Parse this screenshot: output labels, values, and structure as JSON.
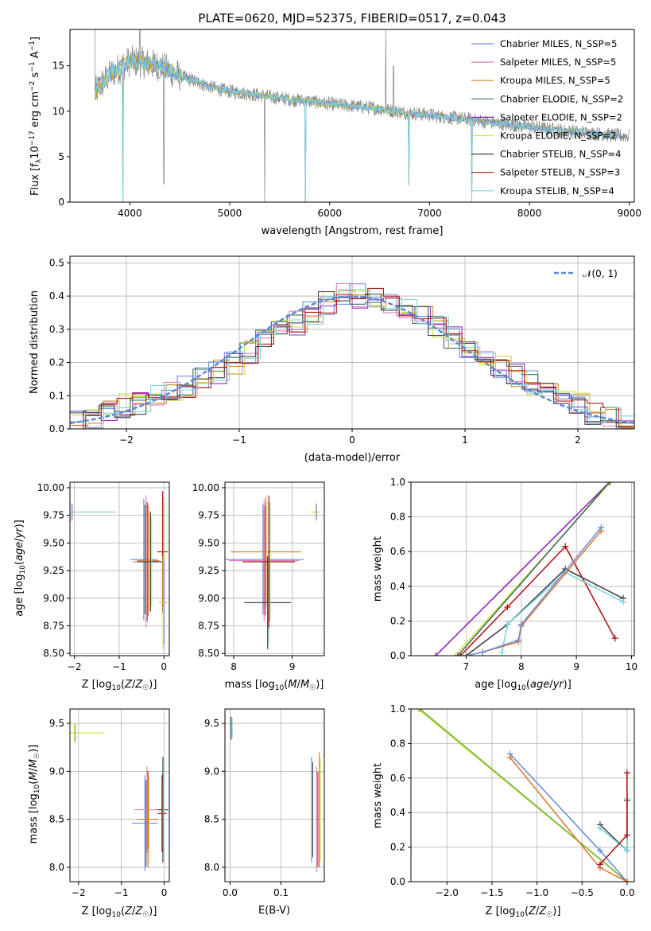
{
  "colors": {
    "Chabrier MILES": "#6f8fdc",
    "Salpeter MILES": "#e07fbe",
    "Kroupa MILES": "#c98a2e",
    "Chabrier ELODIE": "#3f6f5f",
    "Salpeter ELODIE": "#8b2fb5",
    "Kroupa ELODIE": "#d4e040",
    "Chabrier STELIB": "#444444",
    "Salpeter STELIB": "#b01818",
    "Kroupa STELIB": "#7fd6dc",
    "orange": "#e07a3a",
    "green": "#74b83a",
    "gray": "#808080",
    "gauss": "#5a8ad8"
  },
  "chart_data": [
    {
      "id": "spectrum",
      "type": "line",
      "title": "PLATE=0620, MJD=52375, FIBERID=0517, z=0.043",
      "xlabel": "wavelength [Angstrom, rest frame]",
      "ylabel": "Flux [f_λ 10^-17 erg cm^-2 s^-1 A^-1]",
      "xlim": [
        3400,
        9050
      ],
      "ylim": [
        0,
        19
      ],
      "xticks": [
        "4000",
        "5000",
        "6000",
        "7000",
        "8000",
        "9000"
      ],
      "yticks": [
        "0",
        "5",
        "10",
        "15"
      ],
      "legend_position": "upper right",
      "legend": [
        "Chabrier MILES, N_SSP=5",
        "Salpeter MILES, N_SSP=5",
        "Kroupa MILES, N_SSP=5",
        "Chabrier ELODIE, N_SSP=2",
        "Salpeter ELODIE, N_SSP=2",
        "Kroupa ELODIE, N_SSP=2",
        "Chabrier STELIB, N_SSP=4",
        "Salpeter STELIB, N_SSP=3",
        "Kroupa STELIB, N_SSP=4"
      ],
      "continuum": [
        [
          3650,
          12.0
        ],
        [
          3700,
          12.8
        ],
        [
          3800,
          14.0
        ],
        [
          3900,
          14.8
        ],
        [
          4000,
          15.5
        ],
        [
          4100,
          15.4
        ],
        [
          4200,
          15.2
        ],
        [
          4300,
          15.0
        ],
        [
          4400,
          14.4
        ],
        [
          4500,
          13.9
        ],
        [
          4600,
          13.5
        ],
        [
          4700,
          13.1
        ],
        [
          4800,
          12.7
        ],
        [
          4900,
          12.4
        ],
        [
          5000,
          12.2
        ],
        [
          5200,
          11.9
        ],
        [
          5400,
          11.6
        ],
        [
          5600,
          11.3
        ],
        [
          5800,
          11.1
        ],
        [
          6000,
          10.8
        ],
        [
          6200,
          10.6
        ],
        [
          6400,
          10.4
        ],
        [
          6600,
          10.1
        ],
        [
          6800,
          9.8
        ],
        [
          7000,
          9.6
        ],
        [
          7200,
          9.3
        ],
        [
          7400,
          9.1
        ],
        [
          7600,
          8.8
        ],
        [
          7800,
          8.5
        ],
        [
          8000,
          8.3
        ],
        [
          8200,
          8.0
        ],
        [
          8400,
          7.8
        ],
        [
          8600,
          7.6
        ],
        [
          8800,
          7.4
        ],
        [
          8900,
          7.3
        ]
      ],
      "model_gaps": [
        [
          3930,
          0.0
        ],
        [
          5755,
          0.0
        ],
        [
          6795,
          1.8
        ],
        [
          7420,
          0.0
        ]
      ],
      "data_spikes": [
        [
          3650,
          19.0
        ],
        [
          4100,
          19.0
        ],
        [
          4340,
          2.0
        ],
        [
          5350,
          0.0
        ],
        [
          6563,
          19.0
        ],
        [
          6640,
          15.0
        ]
      ]
    },
    {
      "id": "residuals",
      "type": "line",
      "xlabel": "(data-model)/error",
      "ylabel": "Normed distribution",
      "xlim": [
        -2.5,
        2.5
      ],
      "ylim": [
        0,
        0.52
      ],
      "xticks": [
        "−2",
        "−1",
        "0",
        "1",
        "2"
      ],
      "yticks": [
        "0.0",
        "0.1",
        "0.2",
        "0.3",
        "0.4",
        "0.5"
      ],
      "grid": true,
      "legend_position": "upper right",
      "legend": [
        "𝒩(0, 1)"
      ],
      "hist_base": [
        0.03,
        0.04,
        0.05,
        0.07,
        0.08,
        0.1,
        0.11,
        0.13,
        0.15,
        0.17,
        0.2,
        0.23,
        0.26,
        0.29,
        0.32,
        0.35,
        0.38,
        0.4,
        0.4,
        0.39,
        0.38,
        0.36,
        0.34,
        0.31,
        0.28,
        0.25,
        0.22,
        0.19,
        0.16,
        0.14,
        0.11,
        0.09,
        0.07,
        0.05,
        0.04,
        0.03
      ],
      "hist_range": [
        -2.5,
        2.5
      ]
    },
    {
      "id": "age-vs-Z",
      "type": "scatter",
      "xlabel": "Z [log10(Z/Z☉)]",
      "ylabel": "age  [log10(age/yr)]",
      "xlim": [
        -2.1,
        0.12
      ],
      "ylim": [
        8.48,
        10.05
      ],
      "xticks": [
        "−2",
        "−1",
        "0"
      ],
      "yticks": [
        "8.50",
        "8.75",
        "9.00",
        "9.25",
        "9.50",
        "9.75",
        "10.00"
      ],
      "grid": true,
      "points": [
        [
          -0.45,
          9.35,
          0.3,
          0.55
        ],
        [
          -0.4,
          9.33,
          0.3,
          0.6
        ],
        [
          -0.35,
          9.34,
          0.25,
          0.5
        ],
        [
          -0.3,
          9.33,
          0.3,
          0.45
        ],
        [
          -0.03,
          9.42,
          0.12,
          0.55
        ],
        [
          -0.02,
          8.96,
          0.1,
          0.42
        ],
        [
          -2.07,
          9.78,
          1.0,
          0.08
        ]
      ]
    },
    {
      "id": "age-vs-mass",
      "type": "scatter",
      "xlabel": "mass [log10(M/M☉)]",
      "ylabel": "",
      "xlim": [
        7.85,
        9.55
      ],
      "ylim": [
        8.48,
        10.05
      ],
      "xticks": [
        "8",
        "9"
      ],
      "yticks": [
        "8.50",
        "8.75",
        "9.00",
        "9.25",
        "9.50",
        "9.75",
        "10.00"
      ],
      "grid": true,
      "points": [
        [
          8.5,
          9.35,
          0.7,
          0.5
        ],
        [
          8.52,
          9.34,
          0.6,
          0.55
        ],
        [
          8.55,
          9.42,
          0.6,
          0.5
        ],
        [
          8.58,
          8.96,
          0.4,
          0.42
        ],
        [
          8.6,
          9.33,
          0.45,
          0.6
        ],
        [
          9.4,
          9.78,
          0.08,
          0.08
        ]
      ]
    },
    {
      "id": "massweight-vs-age",
      "type": "line",
      "xlabel": "age  [log10(age/yr)]",
      "ylabel": "mass weight",
      "xlim": [
        6.0,
        10.05
      ],
      "ylim": [
        0,
        1.0
      ],
      "xticks": [
        "7",
        "8",
        "9",
        "10"
      ],
      "yticks": [
        "0.0",
        "0.2",
        "0.4",
        "0.6",
        "0.8",
        "1.0"
      ],
      "grid": true,
      "series": [
        {
          "color": "Salpeter ELODIE",
          "points": [
            [
              6.45,
              0.0
            ],
            [
              9.6,
              1.0
            ]
          ]
        },
        {
          "color": "Kroupa ELODIE",
          "points": [
            [
              6.8,
              0.0
            ],
            [
              9.62,
              1.0
            ]
          ]
        },
        {
          "color": "Chabrier ELODIE",
          "points": [
            [
              6.85,
              0.0
            ],
            [
              9.6,
              1.0
            ]
          ]
        },
        {
          "color": "Salpeter STELIB",
          "points": [
            [
              6.9,
              0.0
            ],
            [
              7.75,
              0.28
            ],
            [
              8.8,
              0.63
            ],
            [
              9.7,
              0.1
            ]
          ]
        },
        {
          "color": "Chabrier STELIB",
          "points": [
            [
              7.0,
              0.0
            ],
            [
              7.75,
              0.18
            ],
            [
              8.8,
              0.5
            ],
            [
              9.85,
              0.33
            ]
          ]
        },
        {
          "color": "Kroupa STELIB",
          "points": [
            [
              7.65,
              0.02
            ],
            [
              7.75,
              0.18
            ],
            [
              8.8,
              0.48
            ],
            [
              9.85,
              0.31
            ]
          ]
        },
        {
          "color": "orange",
          "points": [
            [
              7.0,
              0.0
            ],
            [
              7.3,
              0.02
            ],
            [
              7.95,
              0.08
            ],
            [
              8.0,
              0.17
            ],
            [
              9.45,
              0.72
            ]
          ]
        },
        {
          "color": "Chabrier MILES",
          "points": [
            [
              7.0,
              0.0
            ],
            [
              7.3,
              0.02
            ],
            [
              7.95,
              0.09
            ],
            [
              8.0,
              0.18
            ],
            [
              9.45,
              0.74
            ]
          ]
        }
      ]
    },
    {
      "id": "mass-vs-Z",
      "type": "scatter",
      "xlabel": "Z [log10(Z/Z☉)]",
      "ylabel": "mass [log10(M/M☉)]",
      "xlim": [
        -2.2,
        0.12
      ],
      "ylim": [
        7.85,
        9.65
      ],
      "xticks": [
        "−2",
        "−1",
        "0"
      ],
      "yticks": [
        "8.0",
        "8.5",
        "9.0",
        "9.5"
      ],
      "grid": true,
      "points": [
        [
          -0.45,
          8.46,
          0.3,
          0.5
        ],
        [
          -0.4,
          8.6,
          0.3,
          0.45
        ],
        [
          -0.38,
          8.5,
          0.25,
          0.5
        ],
        [
          -0.03,
          8.6,
          0.12,
          0.55
        ],
        [
          -0.05,
          8.56,
          0.1,
          0.4
        ],
        [
          -2.1,
          9.4,
          0.7,
          0.1
        ]
      ]
    },
    {
      "id": "mass-vs-EBV",
      "type": "scatter",
      "xlabel": "E(B-V)",
      "ylabel": "",
      "xlim": [
        -0.01,
        0.185
      ],
      "ylim": [
        7.85,
        9.65
      ],
      "xticks": [
        "0.0",
        "0.1"
      ],
      "yticks": [
        "8.0",
        "8.5",
        "9.0",
        "9.5"
      ],
      "grid": true,
      "points": [
        [
          0.16,
          8.6,
          0.0,
          0.55
        ],
        [
          0.17,
          8.5,
          0.0,
          0.55
        ],
        [
          0.175,
          8.6,
          0.0,
          0.6
        ],
        [
          0.002,
          9.45,
          0.0,
          0.12
        ]
      ]
    },
    {
      "id": "massweight-vs-Z",
      "type": "line",
      "xlabel": "Z [log10(Z/Z☉)]",
      "ylabel": "mass weight",
      "xlim": [
        -2.4,
        0.08
      ],
      "ylim": [
        0,
        1.0
      ],
      "xticks": [
        "−2.0",
        "−1.5",
        "−1.0",
        "−0.5",
        "0.0"
      ],
      "yticks": [
        "0.0",
        "0.2",
        "0.4",
        "0.6",
        "0.8",
        "1.0"
      ],
      "grid": true,
      "series": [
        {
          "color": "Kroupa ELODIE",
          "points": [
            [
              -2.32,
              1.0
            ],
            [
              0.0,
              0.0
            ]
          ]
        },
        {
          "color": "green",
          "points": [
            [
              -2.3,
              1.0
            ],
            [
              0.0,
              0.0
            ]
          ]
        },
        {
          "color": "Chabrier MILES",
          "points": [
            [
              -1.3,
              0.74
            ],
            [
              -0.3,
              0.18
            ],
            [
              0.0,
              0.0
            ]
          ]
        },
        {
          "color": "orange",
          "points": [
            [
              -1.3,
              0.72
            ],
            [
              -0.3,
              0.08
            ],
            [
              0.0,
              0.0
            ]
          ]
        },
        {
          "color": "Chabrier STELIB",
          "points": [
            [
              -0.3,
              0.33
            ],
            [
              0.0,
              0.18
            ],
            [
              0.0,
              0.47
            ]
          ]
        },
        {
          "color": "Kroupa STELIB",
          "points": [
            [
              -0.3,
              0.31
            ],
            [
              0.0,
              0.18
            ],
            [
              0.0,
              0.48
            ]
          ]
        },
        {
          "color": "Salpeter STELIB",
          "points": [
            [
              -0.3,
              0.1
            ],
            [
              0.0,
              0.27
            ],
            [
              0.0,
              0.63
            ]
          ]
        }
      ]
    }
  ]
}
